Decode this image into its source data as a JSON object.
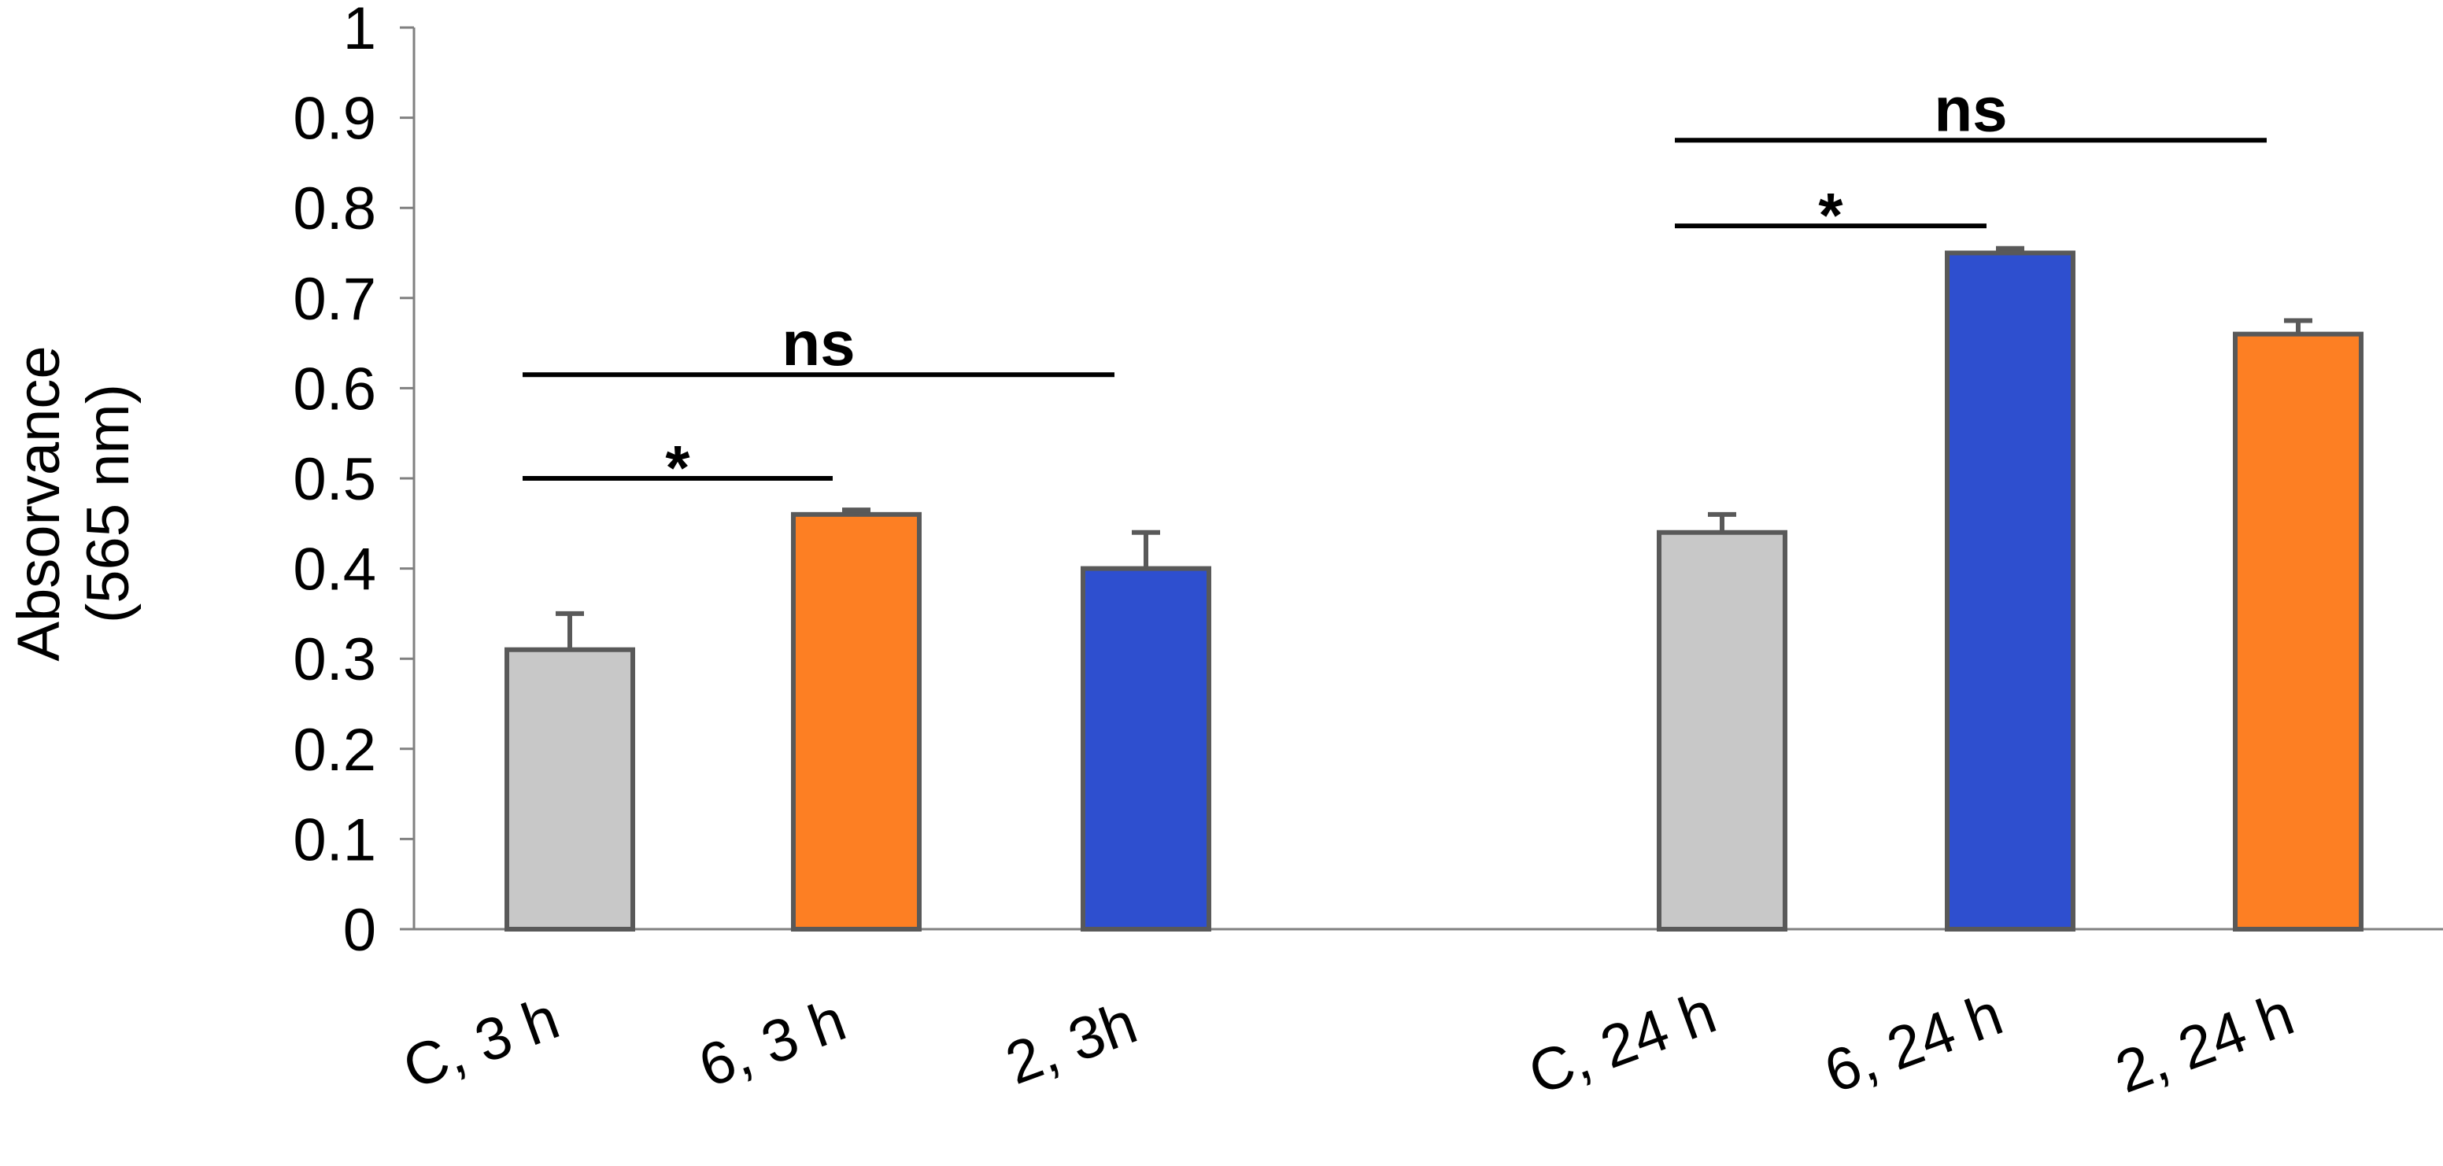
{
  "chart_data": {
    "type": "bar",
    "title": "",
    "xlabel": "",
    "ylabel": [
      "Absorvance",
      "(565 nm)"
    ],
    "ylim": [
      0,
      1
    ],
    "yticks": [
      "0",
      "0.1",
      "0.2",
      "0.3",
      "0.4",
      "0.5",
      "0.6",
      "0.7",
      "0.8",
      "0.9",
      "1"
    ],
    "grid": false,
    "legend": null,
    "colors": {
      "control": "#c8c8c8",
      "orange": "#fd7f23",
      "blue": "#2e4fcf",
      "outline": "#595959",
      "line": "#000000"
    },
    "bars": [
      {
        "label": "C, 3 h",
        "value": 0.31,
        "error": 0.04,
        "color": "#c8c8c8"
      },
      {
        "label": "6, 3 h",
        "value": 0.46,
        "error": 0.005,
        "color": "#fd7f23"
      },
      {
        "label": "2, 3h",
        "value": 0.4,
        "error": 0.04,
        "color": "#2e4fcf"
      },
      {
        "label": "C, 24 h",
        "value": 0.44,
        "error": 0.02,
        "color": "#c8c8c8"
      },
      {
        "label": "6, 24 h",
        "value": 0.75,
        "error": 0.005,
        "color": "#2e4fcf"
      },
      {
        "label": "2, 24 h",
        "value": 0.66,
        "error": 0.015,
        "color": "#fd7f23"
      }
    ],
    "annotations": [
      {
        "text": "ns",
        "from": 0,
        "to": 2,
        "y": 0.615
      },
      {
        "text": "*",
        "from": 0,
        "to": 1,
        "y": 0.5
      },
      {
        "text": "ns",
        "from": 3,
        "to": 5,
        "y": 0.875
      },
      {
        "text": "*",
        "from": 3,
        "to": 4,
        "y": 0.78
      }
    ]
  }
}
